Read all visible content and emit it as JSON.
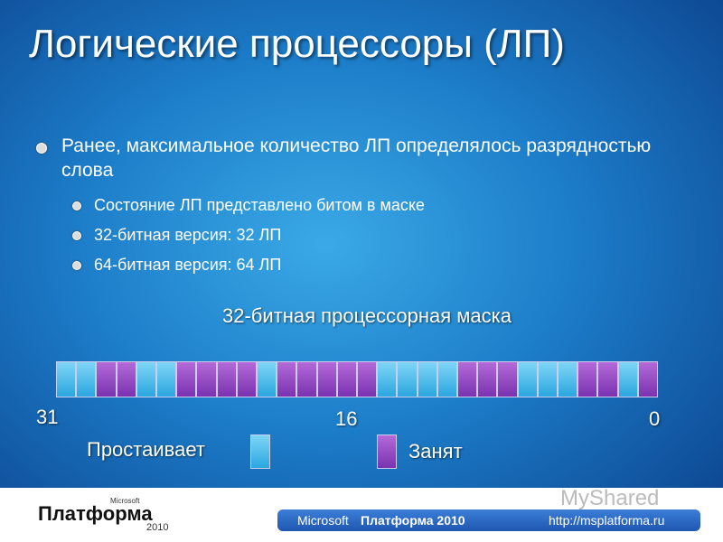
{
  "title": "Логические процессоры (ЛП)",
  "bullets": [
    {
      "text": "Ранее, максимальное количество ЛП определялось разрядностью слова",
      "subbullets": [
        "Состояние ЛП представлено битом в маске",
        "32-битная версия: 32 ЛП",
        "64-битная версия: 64 ЛП"
      ]
    }
  ],
  "mask": {
    "label": "32-битная процессорная маска",
    "bit_labels": [
      "31",
      "16",
      "0"
    ]
  },
  "legend": {
    "idle": "Простаивает",
    "busy": "Занят"
  },
  "footer": {
    "logo": "Платформа",
    "logo_vendor": "Microsoft",
    "logo_year": "2010",
    "vendor": "Microsoft",
    "product": "Платформа 2010",
    "url": "http://msplatforma.ru",
    "watermark": "MyShared"
  }
}
